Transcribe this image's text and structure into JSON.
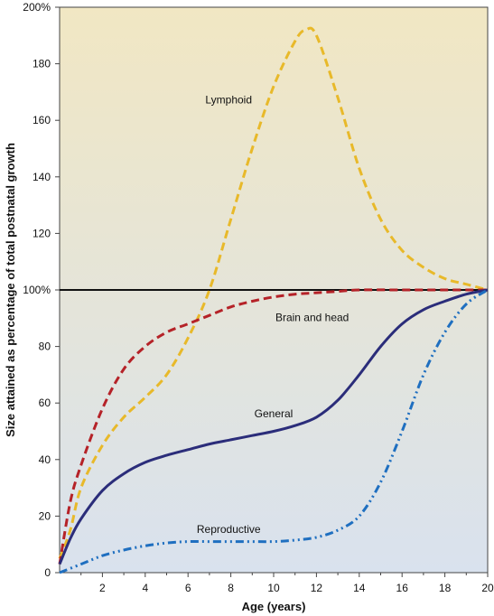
{
  "chart_data": {
    "type": "line",
    "xlabel": "Age (years)",
    "ylabel": "Size attained as percentage of total postnatal growth",
    "xlim": [
      0,
      20
    ],
    "ylim": [
      0,
      200
    ],
    "x_ticks": [
      "2",
      "4",
      "6",
      "8",
      "10",
      "12",
      "14",
      "16",
      "18",
      "20"
    ],
    "y_ticks": [
      "0",
      "20",
      "40",
      "60",
      "80",
      "100%",
      "120",
      "140",
      "160",
      "180",
      "200%"
    ],
    "reference_line": 100,
    "background_gradient": [
      "#f1e7c3",
      "#d9e2ee"
    ],
    "series": [
      {
        "name": "Lymphoid",
        "color": "#e8b92a",
        "style": "dashed",
        "x": [
          0,
          0.5,
          1,
          2,
          3,
          4,
          5,
          6,
          7,
          8,
          9,
          10,
          11,
          11.5,
          12,
          13,
          14,
          15,
          16,
          17,
          18,
          19,
          20
        ],
        "y": [
          5,
          15,
          30,
          45,
          55,
          62,
          70,
          83,
          100,
          125,
          150,
          172,
          188,
          192,
          190,
          168,
          143,
          125,
          114,
          108,
          104,
          102,
          100
        ]
      },
      {
        "name": "Brain and head",
        "color": "#b52228",
        "style": "dashed",
        "x": [
          0,
          0.5,
          1,
          2,
          3,
          4,
          5,
          6,
          7,
          8,
          9,
          10,
          11,
          12,
          13,
          14,
          16,
          18,
          20
        ],
        "y": [
          3,
          25,
          38,
          58,
          72,
          80,
          85,
          88,
          91,
          94,
          96,
          97.5,
          98.5,
          99,
          99.5,
          100,
          100,
          100,
          100
        ]
      },
      {
        "name": "General",
        "color": "#2b2d7a",
        "style": "solid",
        "x": [
          0,
          0.5,
          1,
          2,
          3,
          4,
          5,
          6,
          7,
          8,
          9,
          10,
          11,
          12,
          13,
          14,
          15,
          16,
          17,
          18,
          19,
          20
        ],
        "y": [
          3,
          12,
          19,
          29,
          35,
          39,
          41.5,
          43.5,
          45.5,
          47,
          48.5,
          50,
          52,
          55,
          61,
          70,
          80,
          88,
          93,
          96,
          98.5,
          100
        ]
      },
      {
        "name": "Reproductive",
        "color": "#1f6fc0",
        "style": "dashdotdot",
        "x": [
          0,
          1,
          2,
          3,
          4,
          5,
          6,
          7,
          8,
          9,
          10,
          11,
          12,
          13,
          14,
          15,
          16,
          17,
          18,
          19,
          20
        ],
        "y": [
          0,
          3,
          6,
          8,
          9.5,
          10.5,
          11,
          11,
          11,
          11,
          11,
          11.5,
          12.5,
          15,
          20,
          32,
          50,
          70,
          85,
          95,
          100
        ]
      }
    ],
    "annotations": [
      {
        "text": "Lymphoid",
        "x": 7.9,
        "y": 166
      },
      {
        "text": "Brain and head",
        "x": 11.8,
        "y": 89
      },
      {
        "text": "General",
        "x": 10,
        "y": 55
      },
      {
        "text": "Reproductive",
        "x": 7.9,
        "y": 14
      }
    ]
  }
}
